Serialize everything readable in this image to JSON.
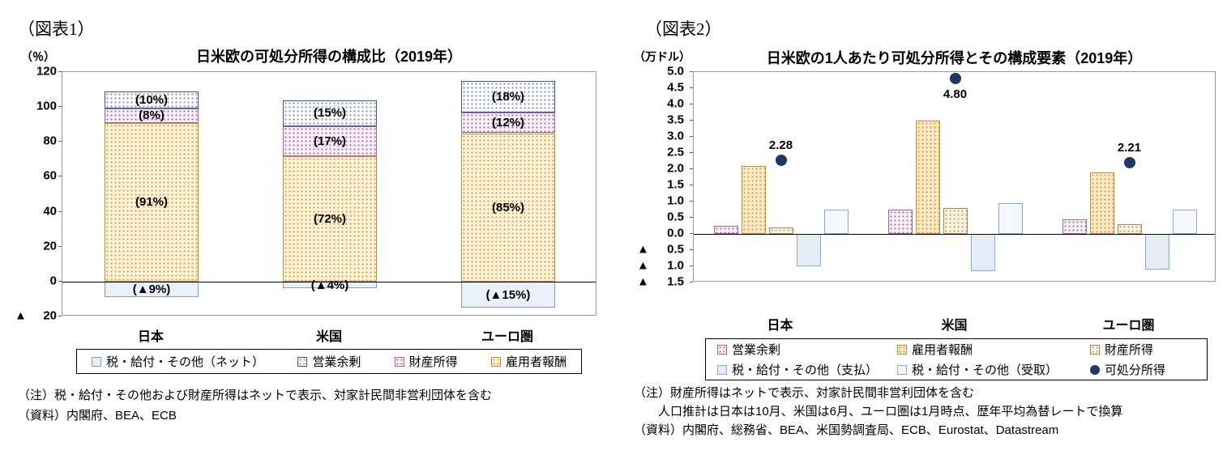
{
  "page": {
    "background": "#FFFFFF"
  },
  "chart_data": [
    {
      "type": "stacked-bar",
      "fig_label": "（図表1）",
      "title": "日米欧の可処分所得の構成比（2019年）",
      "unit_label": "（％）",
      "categories": [
        "日本",
        "米国",
        "ユーロ圏"
      ],
      "y_axis": {
        "min": -20,
        "max": 120,
        "step": 20,
        "tick_labels": [
          "120",
          "100",
          "80",
          "60",
          "40",
          "20",
          "0",
          "▲ 20"
        ],
        "grid": false
      },
      "series": [
        {
          "key": "compensation",
          "name": "雇用者報酬",
          "values": [
            91,
            72,
            85
          ],
          "data_labels": [
            "(91%)",
            "(72%)",
            "(85%)"
          ],
          "fill": "#FDF4DC",
          "dot": "#E09B38",
          "border": "#C9892E"
        },
        {
          "key": "property",
          "name": "財産所得",
          "values": [
            8,
            17,
            12
          ],
          "data_labels": [
            "(8%)",
            "(17%)",
            "(12%)"
          ],
          "fill": "#FAF0F8",
          "dot": "#A868A0",
          "border": "#96689E"
        },
        {
          "key": "operating",
          "name": "営業余剰",
          "values": [
            10,
            15,
            18
          ],
          "data_labels": [
            "(10%)",
            "(15%)",
            "(18%)"
          ],
          "fill": "#FFFFFF",
          "dot": "#7C89B8",
          "border": "#3A5795"
        },
        {
          "key": "tax",
          "name": "税・給付・その他（ネット）",
          "values": [
            -9,
            -4,
            -15
          ],
          "data_labels": [
            "(▲9%)",
            "(▲4%)",
            "(▲15%)"
          ],
          "fill": "#E9F0F8",
          "dot": null,
          "border": "#7F9DC9"
        }
      ],
      "legend_order": [
        "tax",
        "operating",
        "property",
        "compensation"
      ],
      "legend_position": "bottom",
      "notes": [
        "（注）税・給付・その他および財産所得はネットで表示、対家計民間非営利団体を含む",
        "（資料）内閣府、BEA、ECB"
      ]
    },
    {
      "type": "grouped-bar-with-points",
      "fig_label": "（図表2）",
      "title": "日米欧の1人あたり可処分所得とその構成要素（2019年）",
      "unit_label": "（万ドル）",
      "categories": [
        "日本",
        "米国",
        "ユーロ圏"
      ],
      "y_axis": {
        "min": -1.5,
        "max": 5.0,
        "step": 0.5,
        "tick_labels": [
          "5.0",
          "4.5",
          "4.0",
          "3.5",
          "3.0",
          "2.5",
          "2.0",
          "1.5",
          "1.0",
          "0.5",
          "0.0",
          "▲ 0.5",
          "▲ 1.0",
          "▲ 1.5"
        ],
        "grid": false
      },
      "series": [
        {
          "key": "operating",
          "name": "営業余剰",
          "values": [
            0.25,
            0.75,
            0.45
          ],
          "fill": "#FAF0F8",
          "dot": "#A868A0",
          "border": "#96689E"
        },
        {
          "key": "compensation",
          "name": "雇用者報酬",
          "values": [
            2.1,
            3.5,
            1.9
          ],
          "fill": "#FAEBC8",
          "dot": "#DE9A33",
          "border": "#C9892E"
        },
        {
          "key": "property",
          "name": "財産所得",
          "values": [
            0.2,
            0.8,
            0.3
          ],
          "fill": "#F9F3E3",
          "dot": "#BFA45E",
          "border": "#A5894B"
        },
        {
          "key": "tax_paid",
          "name": "税・給付・その他（支払）",
          "values": [
            -1.0,
            -1.15,
            -1.1
          ],
          "fill": "#E4ECF6",
          "dot": null,
          "border": "#8FAAD0"
        },
        {
          "key": "tax_received",
          "name": "税・給付・その他（受取）",
          "values": [
            0.75,
            0.95,
            0.75
          ],
          "fill": "#F4F8FC",
          "dot": null,
          "border": "#8FAAD0"
        }
      ],
      "scatter": {
        "key": "disposable",
        "name": "可処分所得",
        "values": [
          2.28,
          4.8,
          2.21
        ],
        "data_labels": [
          "2.28",
          "4.80",
          "2.21"
        ],
        "label_positions": [
          "above",
          "below",
          "above"
        ],
        "color": "#1F3864"
      },
      "legend_order": [
        "operating",
        "compensation",
        "property",
        "tax_paid",
        "tax_received",
        "disposable"
      ],
      "legend_position": "bottom",
      "notes": [
        "（注）財産所得はネットで表示、対家計民間非営利団体を含む",
        "　　人口推計は日本は10月、米国は6月、ユーロ圏は1月時点、歴年平均為替レートで換算",
        "（資料）内閣府、総務省、BEA、米国勢調査局、ECB、Eurostat、Datastream"
      ]
    }
  ]
}
